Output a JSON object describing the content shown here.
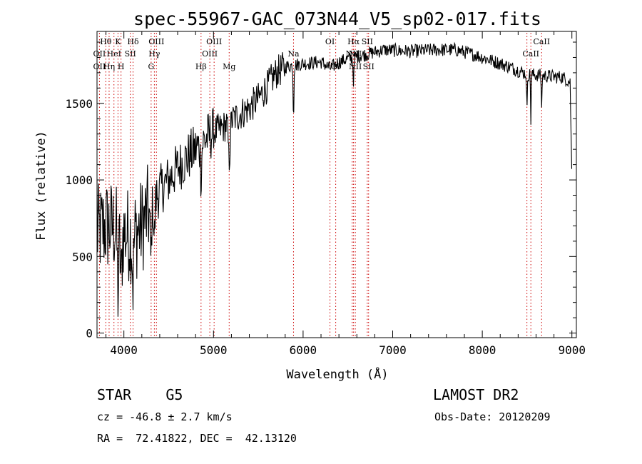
{
  "info": {
    "object": "STAR    G5",
    "survey": "LAMOST DR2",
    "cz": "cz = -46.8 ± 2.7 km/s",
    "obs_date": "Obs-Date: 20120209",
    "radec": "RA =  72.41822, DEC =  42.13120"
  },
  "chart_data": {
    "type": "line",
    "title": "spec-55967-GAC_073N44_V5_sp02-017.fits",
    "xlabel": "Wavelength (Å)",
    "ylabel": "Flux (relative)",
    "xlim": [
      3700,
      9050
    ],
    "ylim": [
      -30,
      1970
    ],
    "xticks": [
      4000,
      5000,
      6000,
      7000,
      8000,
      9000
    ],
    "yticks": [
      0,
      500,
      1000,
      1500
    ],
    "line_color": "#000000",
    "marker_color": "#cc0000",
    "grid": false,
    "continuum": [
      [
        3700,
        650
      ],
      [
        3800,
        700
      ],
      [
        3900,
        690
      ],
      [
        4000,
        660
      ],
      [
        4100,
        630
      ],
      [
        4200,
        700
      ],
      [
        4300,
        830
      ],
      [
        4400,
        930
      ],
      [
        4500,
        1000
      ],
      [
        4600,
        1080
      ],
      [
        4700,
        1140
      ],
      [
        4800,
        1200
      ],
      [
        4900,
        1260
      ],
      [
        5000,
        1310
      ],
      [
        5100,
        1340
      ],
      [
        5200,
        1390
      ],
      [
        5300,
        1430
      ],
      [
        5400,
        1470
      ],
      [
        5500,
        1530
      ],
      [
        5600,
        1610
      ],
      [
        5700,
        1700
      ],
      [
        5800,
        1740
      ],
      [
        5900,
        1750
      ],
      [
        6000,
        1760
      ],
      [
        6200,
        1770
      ],
      [
        6300,
        1730
      ],
      [
        6400,
        1770
      ],
      [
        6500,
        1790
      ],
      [
        6700,
        1820
      ],
      [
        6900,
        1850
      ],
      [
        7200,
        1840
      ],
      [
        7500,
        1850
      ],
      [
        7700,
        1850
      ],
      [
        7900,
        1820
      ],
      [
        8100,
        1780
      ],
      [
        8300,
        1740
      ],
      [
        8500,
        1690
      ],
      [
        8700,
        1680
      ],
      [
        8900,
        1670
      ],
      [
        8980,
        1640
      ],
      [
        9000,
        1000
      ]
    ],
    "absorption_features": [
      {
        "x": 3935,
        "depth": 400,
        "width": 12
      },
      {
        "x": 3969,
        "depth": 350,
        "width": 12
      },
      {
        "x": 4102,
        "depth": 300,
        "width": 10
      },
      {
        "x": 4300,
        "depth": 350,
        "width": 12
      },
      {
        "x": 4340,
        "depth": 250,
        "width": 10
      },
      {
        "x": 4861,
        "depth": 200,
        "width": 10
      },
      {
        "x": 5175,
        "depth": 250,
        "width": 14
      },
      {
        "x": 5893,
        "depth": 350,
        "width": 6
      },
      {
        "x": 6563,
        "depth": 150,
        "width": 8
      },
      {
        "x": 8498,
        "depth": 280,
        "width": 5
      },
      {
        "x": 8542,
        "depth": 300,
        "width": 5
      },
      {
        "x": 8662,
        "depth": 230,
        "width": 5
      }
    ],
    "line_markers": [
      {
        "label": "Hθ",
        "x": 3798,
        "row": 0
      },
      {
        "label": "K",
        "x": 3934,
        "row": 0
      },
      {
        "label": "Hδ",
        "x": 4102,
        "row": 0
      },
      {
        "label": "OIII",
        "x": 4363,
        "row": 0
      },
      {
        "label": "OIII",
        "x": 5007,
        "row": 0
      },
      {
        "label": "OI",
        "x": 6300,
        "row": 0
      },
      {
        "label": "Hα",
        "x": 6563,
        "row": 0
      },
      {
        "label": "SII",
        "x": 6716,
        "row": 0
      },
      {
        "label": "CaII",
        "x": 8662,
        "row": 0
      },
      {
        "label": "OII",
        "x": 3727,
        "row": 1
      },
      {
        "label": "HeI",
        "x": 3889,
        "row": 1
      },
      {
        "label": "SII",
        "x": 4072,
        "row": 1
      },
      {
        "label": "Hγ",
        "x": 4340,
        "row": 1
      },
      {
        "label": "OIII",
        "x": 4959,
        "row": 1
      },
      {
        "label": "Na",
        "x": 5893,
        "row": 1
      },
      {
        "label": "NII",
        "x": 6548,
        "row": 1
      },
      {
        "label": "NII",
        "x": 6583,
        "row": 1
      },
      {
        "label": "CaII",
        "x": 8542,
        "row": 1
      },
      {
        "label": "OII",
        "x": 3727,
        "row": 2
      },
      {
        "label": "Hη",
        "x": 3835,
        "row": 2
      },
      {
        "label": "H",
        "x": 3968,
        "row": 2
      },
      {
        "label": "G",
        "x": 4304,
        "row": 2
      },
      {
        "label": "Hβ",
        "x": 4861,
        "row": 2
      },
      {
        "label": "Mg",
        "x": 5175,
        "row": 2
      },
      {
        "label": "OI",
        "x": 6364,
        "row": 2
      },
      {
        "label": "NII",
        "x": 6583,
        "row": 2
      },
      {
        "label": "SII",
        "x": 6731,
        "row": 2
      }
    ],
    "marker_lines_x": [
      3727,
      3798,
      3835,
      3889,
      3934,
      3968,
      4072,
      4102,
      4304,
      4340,
      4363,
      4861,
      4959,
      5007,
      5175,
      5893,
      6300,
      6364,
      6548,
      6563,
      6583,
      6716,
      6731,
      8498,
      8542,
      8662
    ]
  }
}
